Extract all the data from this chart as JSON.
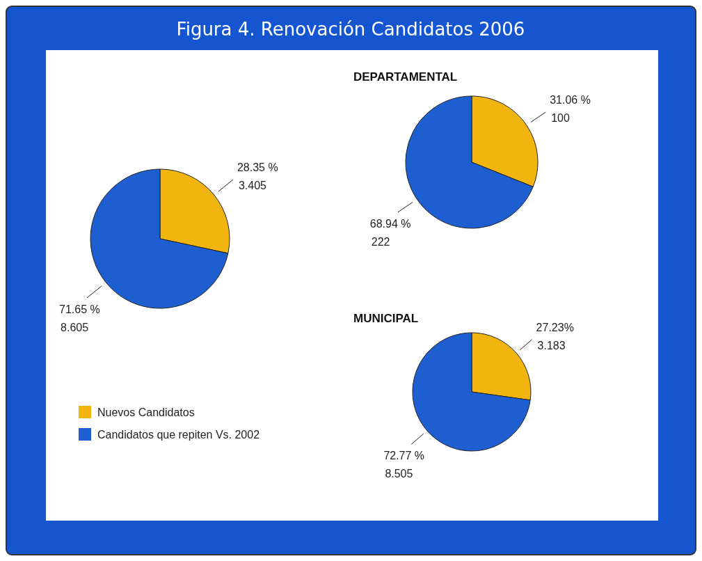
{
  "chart_data": [
    {
      "type": "pie",
      "title": "Figura 4. Renovación Candidatos 2006",
      "categories": [
        "Nuevos Candidatos",
        "Candidatos que repiten Vs. 2002"
      ],
      "values": [
        28.35,
        71.65
      ],
      "colors": [
        "#f2b40e",
        "#1d5fd0"
      ],
      "value_labels": [
        "28.35 %\n3.405",
        "71.65 %\n8.605"
      ],
      "legend": "bottom"
    },
    {
      "type": "pie",
      "title": "DEPARTAMENTAL",
      "categories": [
        null,
        null
      ],
      "values": [
        31.06,
        68.94
      ],
      "colors": [
        "#f2b40e",
        "#1d5fd0"
      ],
      "value_labels": [
        "31.06 %\n100",
        "68.94 %\n222"
      ]
    },
    {
      "type": "pie",
      "title": "MUNICIPAL",
      "categories": [
        null,
        null
      ],
      "values": [
        27.23,
        72.77
      ],
      "colors": [
        "#f2b40e",
        "#1d5fd0"
      ],
      "value_labels": [
        "27.23%\n3.183",
        "72.77 %\n8.505"
      ]
    }
  ]
}
